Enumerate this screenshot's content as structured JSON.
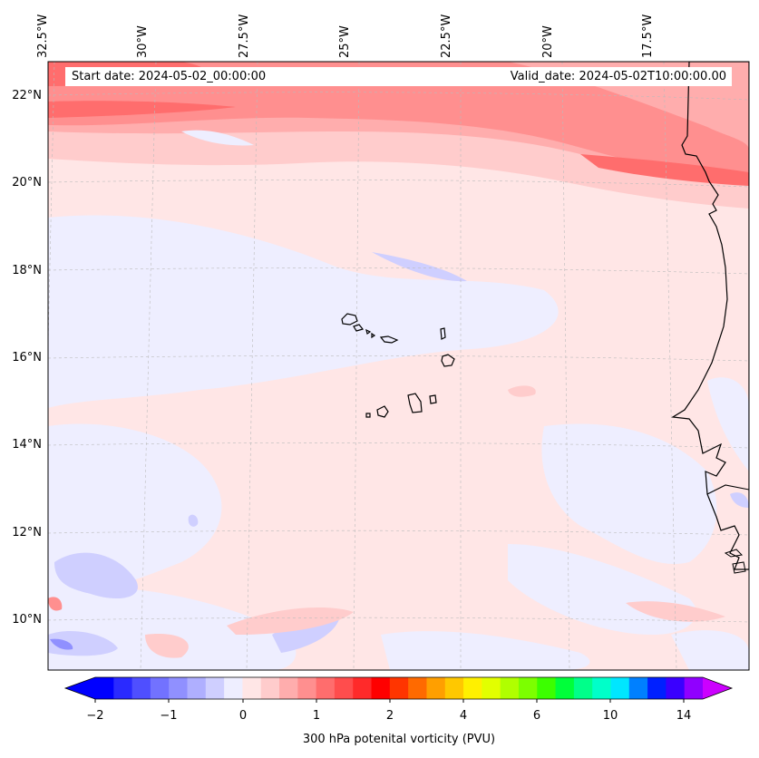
{
  "map": {
    "longitude_labels": [
      "32.5°W",
      "30°W",
      "27.5°W",
      "25°W",
      "22.5°W",
      "20°W",
      "17.5°W"
    ],
    "latitude_labels": [
      "22°N",
      "20°N",
      "18°N",
      "16°N",
      "14°N",
      "12°N",
      "10°N"
    ],
    "start_date": "Start date: 2024-05-02_00:00:00",
    "valid_date": "Valid_date: 2024-05-02T10:00:00.00"
  },
  "colorbar": {
    "ticks": [
      "−2",
      "−1",
      "0",
      "1",
      "2",
      "4",
      "6",
      "10",
      "14"
    ],
    "label": "300 hPa potenital vorticity (PVU)",
    "colors": [
      "#0000ff",
      "#2a2aff",
      "#4f4fff",
      "#7272ff",
      "#9090ff",
      "#afafff",
      "#cfcfff",
      "#eeeeff",
      "#ffe6e6",
      "#ffcccc",
      "#ffadad",
      "#ff8f8f",
      "#ff6d6d",
      "#ff4d4d",
      "#ff2a2a",
      "#ff0000",
      "#ff3500",
      "#ff6a00",
      "#ff9f00",
      "#ffc800",
      "#fff000",
      "#e2ff00",
      "#b0ff00",
      "#7cff00",
      "#3cff00",
      "#00ff3a",
      "#00ff8a",
      "#00ffc9",
      "#00e6ff",
      "#0080ff",
      "#0020ff",
      "#3a00ff",
      "#9000ff"
    ],
    "extend_max_color": "#cc00ff",
    "extend_min_color": "#0000ff"
  }
}
